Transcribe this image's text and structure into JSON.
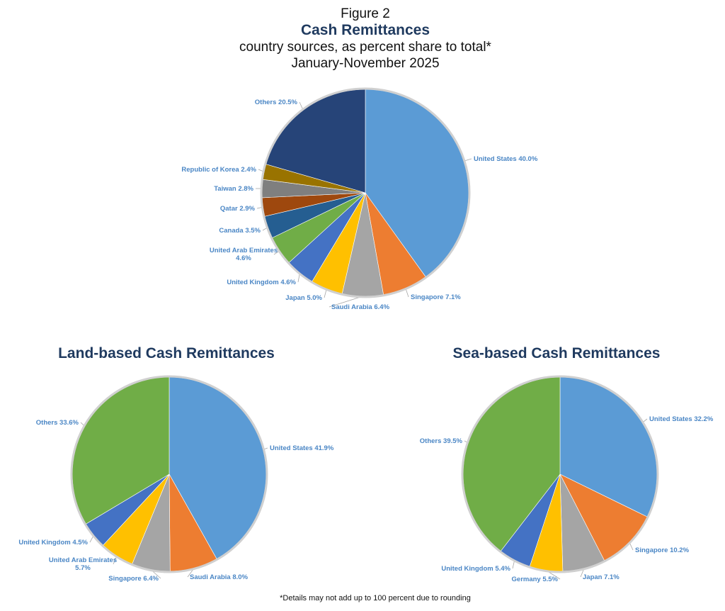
{
  "figure_label": "Figure 2",
  "title": "Cash Remittances",
  "subtitle": "country sources, as percent share to total*",
  "period": "January-November 2025",
  "footnote": "*Details may not add up to 100 percent due to rounding",
  "chart_data": [
    {
      "id": "total",
      "type": "pie",
      "title": "",
      "labels": [
        "United States",
        "Singapore",
        "Saudi Arabia",
        "Japan",
        "United Kingdom",
        "United Arab Emirates",
        "Canada",
        "Qatar",
        "Taiwan",
        "Republic of Korea",
        "Others"
      ],
      "label_texts": [
        "United States 40.0%",
        "Singapore 7.1%",
        "Saudi Arabia 6.4%",
        "Japan 5.0%",
        "United Kingdom 4.6%",
        "United Arab Emirates 4.6%",
        "Canada 3.5%",
        "Qatar 2.9%",
        "Taiwan 2.8%",
        "Republic of Korea 2.4%",
        "Others 20.5%"
      ],
      "values": [
        40.0,
        7.1,
        6.4,
        5.0,
        4.6,
        4.6,
        3.5,
        2.9,
        2.8,
        2.4,
        20.5
      ],
      "colors": [
        "#5b9bd5",
        "#ed7d31",
        "#a5a5a5",
        "#ffc000",
        "#4472c4",
        "#70ad47",
        "#255e91",
        "#9e480e",
        "#7f7f7f",
        "#997300",
        "#264478"
      ]
    },
    {
      "id": "land",
      "type": "pie",
      "title": "Land-based Cash Remittances",
      "labels": [
        "United States",
        "Saudi Arabia",
        "Singapore",
        "United Arab Emirates",
        "United Kingdom",
        "Others"
      ],
      "label_texts": [
        "United States 41.9%",
        "Saudi Arabia 8.0%",
        "Singapore 6.4%",
        "United Arab Emirates 5.7%",
        "United Kingdom 4.5%",
        "Others 33.6%"
      ],
      "values": [
        41.9,
        8.0,
        6.4,
        5.7,
        4.5,
        33.6
      ],
      "colors": [
        "#5b9bd5",
        "#ed7d31",
        "#a5a5a5",
        "#ffc000",
        "#4472c4",
        "#70ad47"
      ]
    },
    {
      "id": "sea",
      "type": "pie",
      "title": "Sea-based Cash Remittances",
      "labels": [
        "United States",
        "Singapore",
        "Japan",
        "Germany",
        "United Kingdom",
        "Others"
      ],
      "label_texts": [
        "United States 32.2%",
        "Singapore 10.2%",
        "Japan 7.1%",
        "Germany 5.5%",
        "United Kingdom 5.4%",
        "Others 39.5%"
      ],
      "values": [
        32.2,
        10.2,
        7.1,
        5.5,
        5.4,
        39.5
      ],
      "colors": [
        "#5b9bd5",
        "#ed7d31",
        "#a5a5a5",
        "#ffc000",
        "#4472c4",
        "#70ad47"
      ]
    }
  ]
}
